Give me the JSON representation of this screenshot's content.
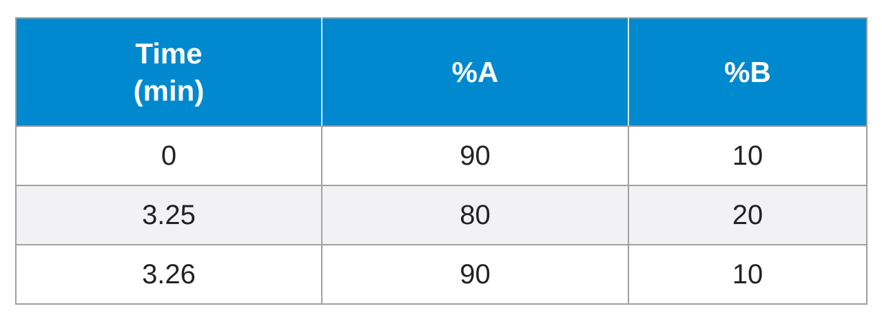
{
  "table": {
    "header": [
      "Time (min)",
      "%A",
      "%B"
    ],
    "rows": [
      [
        "0",
        "90",
        "10"
      ],
      [
        "3.25",
        "80",
        "20"
      ],
      [
        "3.26",
        "90",
        "10"
      ]
    ]
  }
}
